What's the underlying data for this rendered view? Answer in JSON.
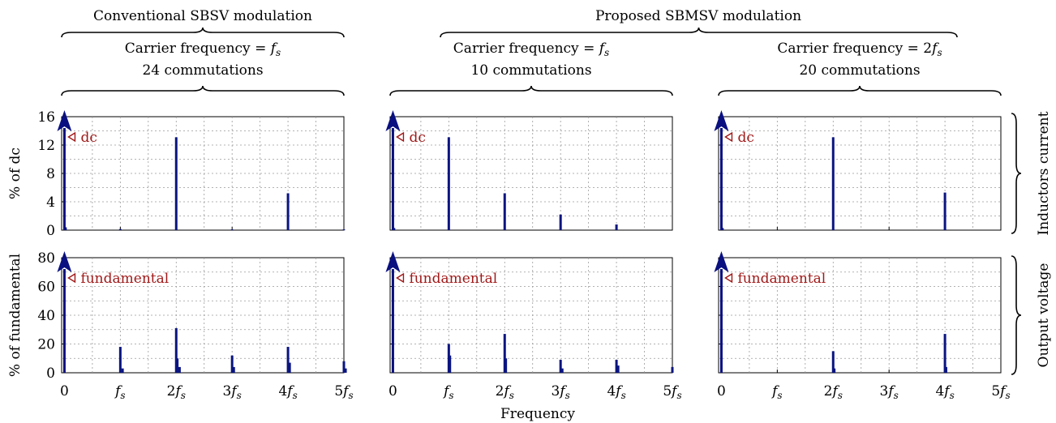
{
  "header": {
    "left_group": "Conventional SBSV modulation",
    "right_group": "Proposed SBMSV modulation"
  },
  "column_captions": [
    {
      "line1": "Carrier frequency = ",
      "symbol": "f",
      "subscript": "s",
      "prefix": "",
      "line2": "24 commutations"
    },
    {
      "line1": "Carrier frequency = ",
      "symbol": "f",
      "subscript": "s",
      "prefix": "",
      "line2": "10 commutations"
    },
    {
      "line1": "Carrier frequency = ",
      "symbol": "f",
      "subscript": "s",
      "prefix": "2",
      "line2": "20 commutations"
    }
  ],
  "row_labels": {
    "top": "Inductors current",
    "bottom": "Output voltage"
  },
  "x_axis": {
    "label": "Frequency",
    "ticks": [
      {
        "coef": "0",
        "sym": ""
      },
      {
        "coef": "",
        "sym": "f"
      },
      {
        "coef": "2",
        "sym": "f"
      },
      {
        "coef": "3",
        "sym": "f"
      },
      {
        "coef": "4",
        "sym": "f"
      },
      {
        "coef": "5",
        "sym": "f"
      }
    ],
    "subscript": "s"
  },
  "colors": {
    "bars": "#0a1580",
    "arrow": "#0a1080",
    "annotation": "#a01818",
    "grid": "#9a9a9a"
  },
  "chart_data": [
    {
      "type": "bar",
      "panel": "Conventional SBSV, carrier fs, inductors current",
      "ylabel": "% of dc",
      "ylim": [
        0,
        16
      ],
      "yticks": [
        0,
        4,
        8,
        12,
        16
      ],
      "xlim": [
        -0.05,
        5
      ],
      "annotation": "dc",
      "x": [
        0,
        0.02,
        1,
        2,
        3,
        4,
        5
      ],
      "values": [
        16,
        0.4,
        0.15,
        13.1,
        0.1,
        5.2,
        0.1
      ]
    },
    {
      "type": "bar",
      "panel": "Proposed SBMSV, carrier fs, inductors current",
      "ylabel": "",
      "ylim": [
        0,
        16
      ],
      "yticks": [
        0,
        4,
        8,
        12,
        16
      ],
      "xlim": [
        -0.05,
        5
      ],
      "annotation": "dc",
      "x": [
        0,
        0.02,
        1,
        2,
        3,
        4
      ],
      "values": [
        16,
        0.3,
        13.1,
        5.2,
        2.2,
        0.8
      ]
    },
    {
      "type": "bar",
      "panel": "Proposed SBMSV, carrier 2fs, inductors current",
      "ylabel": "",
      "ylim": [
        0,
        16
      ],
      "yticks": [
        0,
        4,
        8,
        12,
        16
      ],
      "xlim": [
        -0.05,
        5
      ],
      "annotation": "dc",
      "x": [
        0,
        0.02,
        2,
        4
      ],
      "values": [
        16,
        0.3,
        13.1,
        5.3
      ]
    },
    {
      "type": "bar",
      "panel": "Conventional SBSV, carrier fs, output voltage",
      "ylabel": "% of fundamental",
      "ylim": [
        0,
        80
      ],
      "yticks": [
        0,
        20,
        40,
        60,
        80
      ],
      "xlim": [
        -0.05,
        5
      ],
      "annotation": "fundamental",
      "x": [
        0,
        1,
        1.04,
        2,
        2.02,
        2.06,
        3,
        3.03,
        4,
        4.03,
        5,
        5.03
      ],
      "values": [
        80,
        18,
        3,
        31,
        10,
        4,
        12,
        4,
        18,
        7,
        8,
        3
      ]
    },
    {
      "type": "bar",
      "panel": "Proposed SBMSV, carrier fs, output voltage",
      "ylabel": "",
      "ylim": [
        0,
        80
      ],
      "yticks": [
        0,
        20,
        40,
        60,
        80
      ],
      "xlim": [
        -0.05,
        5
      ],
      "annotation": "fundamental",
      "x": [
        0,
        1,
        1.02,
        2,
        2.02,
        3,
        3.03,
        4,
        4.03,
        5
      ],
      "values": [
        80,
        20,
        12,
        27,
        10,
        9,
        3,
        9,
        5,
        4
      ]
    },
    {
      "type": "bar",
      "panel": "Proposed SBMSV, carrier 2fs, output voltage",
      "ylabel": "",
      "ylim": [
        0,
        80
      ],
      "yticks": [
        0,
        20,
        40,
        60,
        80
      ],
      "xlim": [
        -0.05,
        5
      ],
      "annotation": "fundamental",
      "x": [
        0,
        2,
        2.02,
        4,
        4.02
      ],
      "values": [
        80,
        15,
        3,
        27,
        4
      ]
    }
  ]
}
